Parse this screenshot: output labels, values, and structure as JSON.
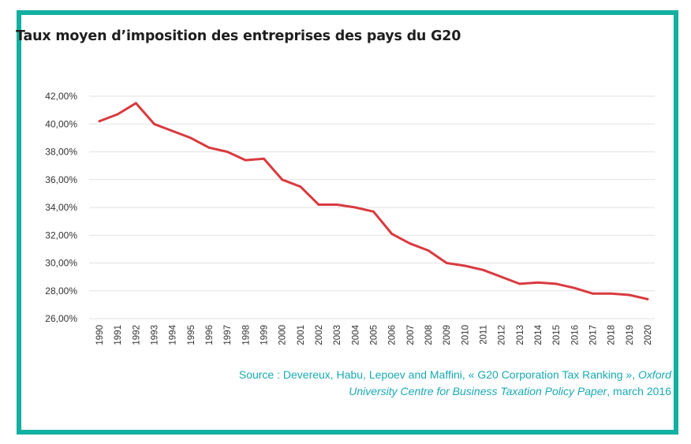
{
  "title": "Taux moyen d’imposition des entreprises des pays du G20",
  "source": {
    "prefix": "Source : Devereux, Habu, Lepoev and Maffini, « G20 Corporation Tax Ranking »,",
    "journal_line1": "Oxford",
    "journal_line2": "University Centre for Business Taxation Policy Paper",
    "suffix": ", march 2016"
  },
  "colors": {
    "line": "#d93a3f",
    "frame": "#12b0a0",
    "source_text": "#1aa9b5",
    "grid": "#e2e2e2"
  },
  "chart_data": {
    "type": "line",
    "title": "Taux moyen d’imposition des entreprises des pays du G20",
    "xlabel": "",
    "ylabel": "",
    "ylim": [
      26,
      42
    ],
    "yticks": [
      26,
      28,
      30,
      32,
      34,
      36,
      38,
      40,
      42
    ],
    "ytick_labels": [
      "26,00%",
      "28,00%",
      "30,00%",
      "32,00%",
      "34,00%",
      "36,00%",
      "38,00%",
      "40,00%",
      "42,00%"
    ],
    "grid": true,
    "legend": "none",
    "x": [
      "1990",
      "1991",
      "1992",
      "1993",
      "1994",
      "1995",
      "1996",
      "1997",
      "1998",
      "1999",
      "2000",
      "2001",
      "2002",
      "2003",
      "2004",
      "2005",
      "2006",
      "2007",
      "2008",
      "2009",
      "2010",
      "2011",
      "2012",
      "2013",
      "2014",
      "2015",
      "2016",
      "2017",
      "2018",
      "2019",
      "2020"
    ],
    "series": [
      {
        "values": [
          40.2,
          40.7,
          41.5,
          40.0,
          39.5,
          39.0,
          38.3,
          38.0,
          37.4,
          37.5,
          36.0,
          35.5,
          34.2,
          34.2,
          34.0,
          33.7,
          32.1,
          31.4,
          30.9,
          30.0,
          29.8,
          29.5,
          29.0,
          28.5,
          28.6,
          28.5,
          28.2,
          27.8,
          27.8,
          27.7,
          27.4
        ]
      }
    ]
  }
}
